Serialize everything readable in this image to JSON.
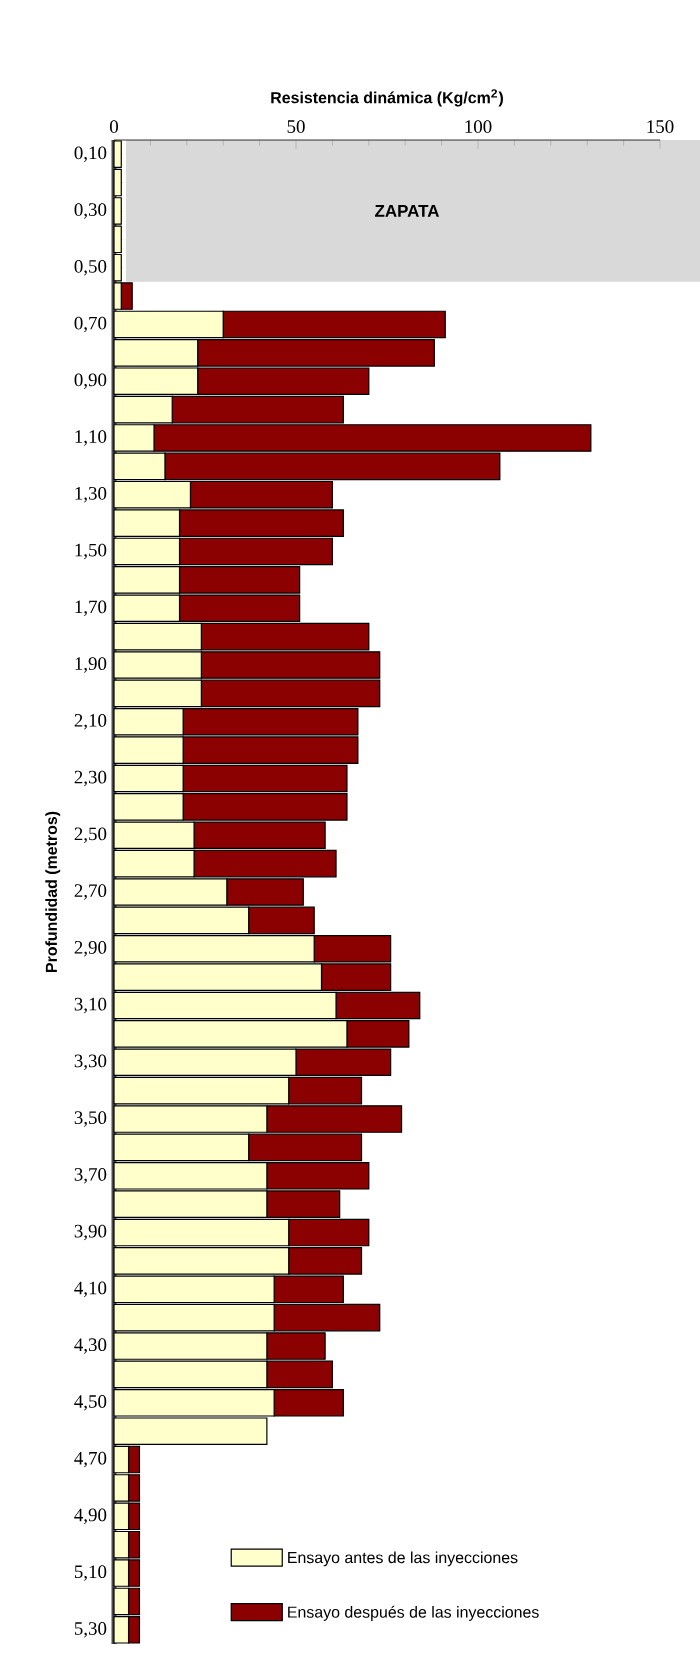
{
  "chart_data": {
    "type": "bar",
    "orientation": "horizontal",
    "stacked": true,
    "xlabel": "Resistencia dinámica (Kg/cm$^{2}$)",
    "ylabel": "Profundidad (metros)",
    "categories": [
      "0,10",
      null,
      "0,30",
      null,
      "0,50",
      null,
      "0,70",
      null,
      "0,90",
      null,
      "1,10",
      null,
      "1,30",
      null,
      "1,50",
      null,
      "1,70",
      null,
      "1,90",
      null,
      "2,10",
      null,
      "2,30",
      null,
      "2,50",
      null,
      "2,70",
      null,
      "2,90",
      null,
      "3,10",
      null,
      "3,30",
      null,
      "3,50",
      null,
      "3,70",
      null,
      "3,90",
      null,
      "4,10",
      null,
      "4,30",
      null,
      "4,50",
      null,
      "4,70",
      null,
      "4,90",
      null,
      "5,10",
      null,
      "5,30"
    ],
    "series": [
      {
        "name": "Ensayo antes de las inyecciones",
        "color": "#ffffcc",
        "values": [
          2,
          2,
          2,
          2,
          2,
          2,
          30,
          23,
          23,
          16,
          11,
          14,
          21,
          18,
          18,
          18,
          18,
          24,
          24,
          24,
          19,
          19,
          19,
          19,
          22,
          22,
          31,
          37,
          55,
          57,
          61,
          64,
          50,
          48,
          42,
          37,
          42,
          42,
          48,
          48,
          44,
          44,
          42,
          42,
          44,
          42,
          4,
          4,
          4,
          4,
          4,
          4,
          4
        ]
      },
      {
        "name": "Ensayo después de las inyecciones",
        "color": "#8b0000",
        "values": [
          null,
          null,
          null,
          null,
          null,
          3,
          61,
          65,
          47,
          47,
          120,
          92,
          39,
          45,
          42,
          33,
          33,
          46,
          49,
          49,
          48,
          48,
          45,
          45,
          36,
          39,
          21,
          18,
          21,
          19,
          23,
          17,
          26,
          20,
          37,
          31,
          28,
          20,
          22,
          20,
          19,
          29,
          16,
          18,
          19,
          null,
          3,
          3,
          3,
          3,
          3,
          3,
          3
        ]
      }
    ],
    "xlim": [
      0,
      150
    ],
    "xticks": [
      0,
      50,
      100,
      150
    ],
    "bands": [
      {
        "axis": "y",
        "from": "0,10",
        "to": "0,50",
        "label": "ZAPATA",
        "color": "#d9d9d9"
      }
    ],
    "legend": "bottom"
  }
}
